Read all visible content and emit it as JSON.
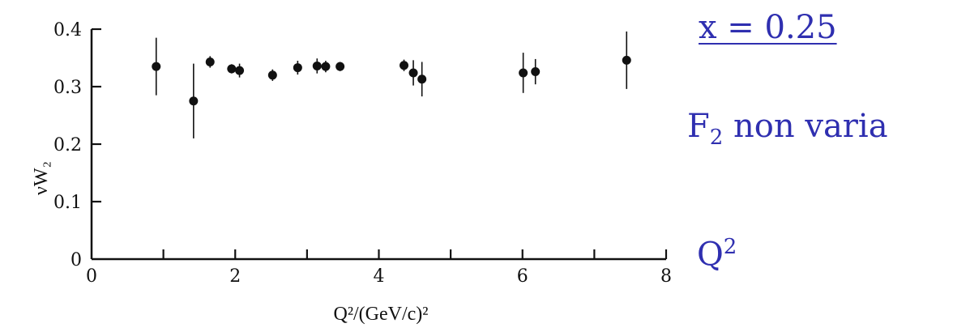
{
  "chart_data": {
    "type": "scatter",
    "xlabel": "Q²/(GeV/c)²",
    "ylabel": "νW₂",
    "xlim": [
      0,
      8
    ],
    "ylim": [
      0,
      0.4
    ],
    "x_ticks": [
      "0",
      "2",
      "4",
      "6",
      "8"
    ],
    "y_ticks": [
      "0",
      "0.1",
      "0.2",
      "0.3",
      "0.4"
    ],
    "grid": false,
    "points": [
      {
        "x": 0.9,
        "y": 0.335,
        "err": 0.05
      },
      {
        "x": 1.42,
        "y": 0.275,
        "err": 0.065
      },
      {
        "x": 1.65,
        "y": 0.343,
        "err": 0.01
      },
      {
        "x": 1.95,
        "y": 0.331,
        "err": 0.008
      },
      {
        "x": 2.06,
        "y": 0.328,
        "err": 0.012
      },
      {
        "x": 2.52,
        "y": 0.32,
        "err": 0.01
      },
      {
        "x": 2.87,
        "y": 0.333,
        "err": 0.012
      },
      {
        "x": 3.14,
        "y": 0.336,
        "err": 0.013
      },
      {
        "x": 3.26,
        "y": 0.335,
        "err": 0.01
      },
      {
        "x": 3.46,
        "y": 0.335,
        "err": 0.008
      },
      {
        "x": 4.35,
        "y": 0.337,
        "err": 0.01
      },
      {
        "x": 4.48,
        "y": 0.324,
        "err": 0.022
      },
      {
        "x": 4.6,
        "y": 0.313,
        "err": 0.03
      },
      {
        "x": 6.01,
        "y": 0.324,
        "err": 0.035
      },
      {
        "x": 6.18,
        "y": 0.326,
        "err": 0.022
      },
      {
        "x": 7.45,
        "y": 0.346,
        "err": 0.05
      }
    ]
  },
  "annotations": {
    "x_value_label": "x = 0.25",
    "f2_letter": "F",
    "f2_sub": "2",
    "f2_text": " non varia",
    "q_letter": "Q",
    "q_sup": "2"
  }
}
